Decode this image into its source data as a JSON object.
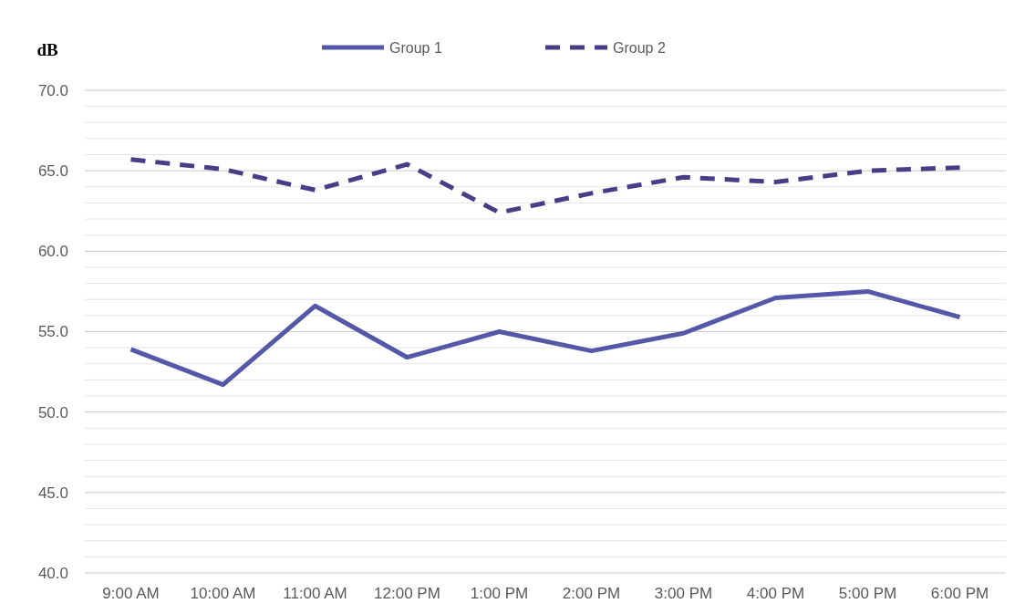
{
  "chart_data": {
    "type": "line",
    "ylabel": "dB",
    "categories": [
      "9:00 AM",
      "10:00 AM",
      "11:00 AM",
      "12:00 PM",
      "1:00 PM",
      "2:00 PM",
      "3:00 PM",
      "4:00 PM",
      "5:00 PM",
      "6:00 PM"
    ],
    "series": [
      {
        "name": "Group 1",
        "color": "#5558a8",
        "line_style": "solid",
        "values": [
          53.9,
          51.7,
          56.6,
          53.4,
          55.0,
          53.8,
          54.9,
          57.1,
          57.5,
          55.9
        ]
      },
      {
        "name": "Group 2",
        "color": "#4a3c86",
        "line_style": "dashed",
        "values": [
          65.7,
          65.1,
          63.8,
          65.4,
          62.4,
          63.6,
          64.6,
          64.3,
          65.0,
          65.2
        ]
      }
    ],
    "ylim": [
      40,
      70
    ],
    "yticks": [
      {
        "value": 40,
        "label": "40.0"
      },
      {
        "value": 41,
        "label": null
      },
      {
        "value": 42,
        "label": null
      },
      {
        "value": 43,
        "label": null
      },
      {
        "value": 44,
        "label": null
      },
      {
        "value": 45,
        "label": "45.0"
      },
      {
        "value": 46,
        "label": null
      },
      {
        "value": 47,
        "label": null
      },
      {
        "value": 48,
        "label": null
      },
      {
        "value": 49,
        "label": null
      },
      {
        "value": 50,
        "label": "50.0"
      },
      {
        "value": 51,
        "label": null
      },
      {
        "value": 52,
        "label": null
      },
      {
        "value": 53,
        "label": null
      },
      {
        "value": 54,
        "label": null
      },
      {
        "value": 55,
        "label": "55.0"
      },
      {
        "value": 56,
        "label": null
      },
      {
        "value": 57,
        "label": null
      },
      {
        "value": 58,
        "label": null
      },
      {
        "value": 59,
        "label": null
      },
      {
        "value": 60,
        "label": "60.0"
      },
      {
        "value": 61,
        "label": null
      },
      {
        "value": 62,
        "label": null
      },
      {
        "value": 63,
        "label": null
      },
      {
        "value": 64,
        "label": null
      },
      {
        "value": 65,
        "label": "65.0"
      },
      {
        "value": 66,
        "label": null
      },
      {
        "value": 67,
        "label": null
      },
      {
        "value": 68,
        "label": null
      },
      {
        "value": 69,
        "label": null
      },
      {
        "value": 70,
        "label": "70.0"
      }
    ],
    "grid": true,
    "legend": "top"
  }
}
